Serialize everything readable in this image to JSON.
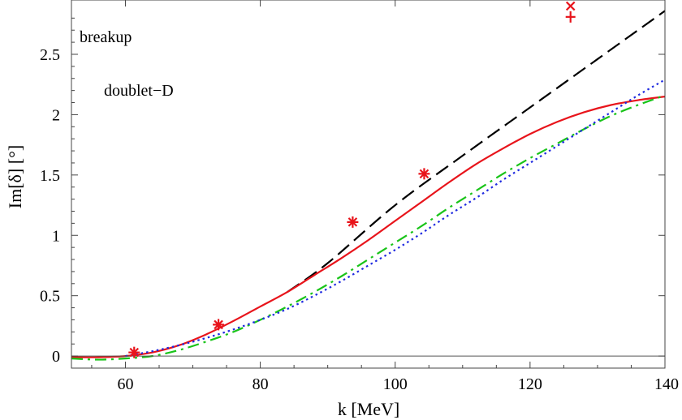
{
  "chart_data": {
    "type": "line",
    "xlabel": "k [MeV]",
    "ylabel": "Im[δ] [°]",
    "xlim": [
      52,
      140
    ],
    "ylim": [
      -0.1,
      2.95
    ],
    "x_ticks": [
      60,
      80,
      100,
      120,
      140
    ],
    "y_ticks": [
      0,
      0.5,
      1,
      1.5,
      2,
      2.5
    ],
    "x_tick_labels": [
      "60",
      "80",
      "100",
      "120",
      "140"
    ],
    "y_tick_labels": [
      "0",
      "0.5",
      "1",
      "1.5",
      "2",
      "2.5"
    ],
    "annotations": [
      "breakup",
      "doublet−D"
    ],
    "series": [
      {
        "name": "dashed (black)",
        "color": "#000000",
        "style": "dashed",
        "x": [
          84,
          90,
          100,
          110,
          120,
          130,
          140
        ],
        "y": [
          0.53,
          0.77,
          1.25,
          1.66,
          2.06,
          2.46,
          2.86
        ]
      },
      {
        "name": "solid (red)",
        "color": "#e8141b",
        "style": "solid",
        "x": [
          52,
          56,
          60,
          64,
          68,
          72,
          76,
          80,
          84,
          88,
          92,
          96,
          100,
          104,
          108,
          112,
          116,
          120,
          124,
          128,
          132,
          136,
          140
        ],
        "y": [
          -0.01,
          -0.01,
          0.0,
          0.03,
          0.09,
          0.18,
          0.29,
          0.41,
          0.53,
          0.67,
          0.81,
          0.96,
          1.12,
          1.28,
          1.44,
          1.59,
          1.72,
          1.84,
          1.94,
          2.02,
          2.08,
          2.12,
          2.15
        ]
      },
      {
        "name": "dash-dotted (green)",
        "color": "#19c419",
        "style": "dashdot",
        "x": [
          52,
          56,
          60,
          64,
          68,
          72,
          76,
          80,
          84,
          88,
          92,
          96,
          100,
          104,
          108,
          112,
          116,
          120,
          124,
          128,
          132,
          136,
          140
        ],
        "y": [
          -0.02,
          -0.03,
          -0.02,
          0.0,
          0.05,
          0.12,
          0.2,
          0.3,
          0.41,
          0.53,
          0.66,
          0.8,
          0.94,
          1.08,
          1.23,
          1.37,
          1.51,
          1.64,
          1.76,
          1.88,
          1.99,
          2.08,
          2.16
        ]
      },
      {
        "name": "dotted (blue)",
        "color": "#1f2ae0",
        "style": "dotted",
        "x": [
          60,
          64,
          68,
          72,
          76,
          80,
          84,
          88,
          92,
          96,
          100,
          104,
          108,
          112,
          116,
          120,
          124,
          128,
          132,
          136,
          140
        ],
        "y": [
          0.0,
          0.04,
          0.09,
          0.15,
          0.22,
          0.3,
          0.39,
          0.5,
          0.62,
          0.75,
          0.88,
          1.02,
          1.17,
          1.31,
          1.46,
          1.6,
          1.74,
          1.88,
          2.02,
          2.16,
          2.29
        ]
      }
    ],
    "markers": [
      {
        "name": "asterisk-points",
        "symbol": "asterisk",
        "color": "#e8141b",
        "x": [
          61.3,
          73.8,
          93.7,
          104.3
        ],
        "y": [
          0.03,
          0.26,
          1.11,
          1.51
        ]
      },
      {
        "name": "cross-point",
        "symbol": "x",
        "color": "#e8141b",
        "x": [
          126
        ],
        "y": [
          2.9
        ]
      },
      {
        "name": "plus-point",
        "symbol": "plus",
        "color": "#e8141b",
        "x": [
          126
        ],
        "y": [
          2.81
        ]
      }
    ]
  }
}
